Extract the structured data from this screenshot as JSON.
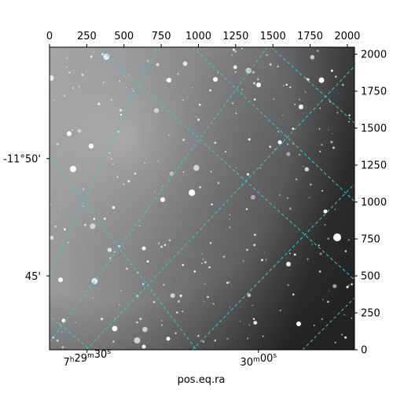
{
  "chart_data": {
    "type": "image",
    "xlabel": "pos.eq.ra",
    "ylabel": "",
    "xlim": [
      0,
      2048
    ],
    "ylim": [
      0,
      2048
    ],
    "pixel_axes": {
      "top_ticks": [
        0,
        250,
        500,
        750,
        1000,
        1250,
        1500,
        1750,
        2000
      ],
      "right_ticks": [
        0,
        250,
        500,
        750,
        1000,
        1250,
        1500,
        1750,
        2000
      ]
    },
    "world_axes": {
      "ra_labels": [
        {
          "text": "7h29m30s",
          "h": "7",
          "m": "29",
          "s": "30",
          "x": 252
        },
        {
          "text": "30m00s",
          "m": "30",
          "s": "00",
          "x": 1403
        }
      ],
      "dec_labels": [
        {
          "text": "-11°50'",
          "y": 1294
        },
        {
          "text": "45'",
          "y": 500
        }
      ]
    },
    "image_colormap": "grayscale",
    "grid_color": "#2fd0d0",
    "grid_style": "dashed"
  }
}
